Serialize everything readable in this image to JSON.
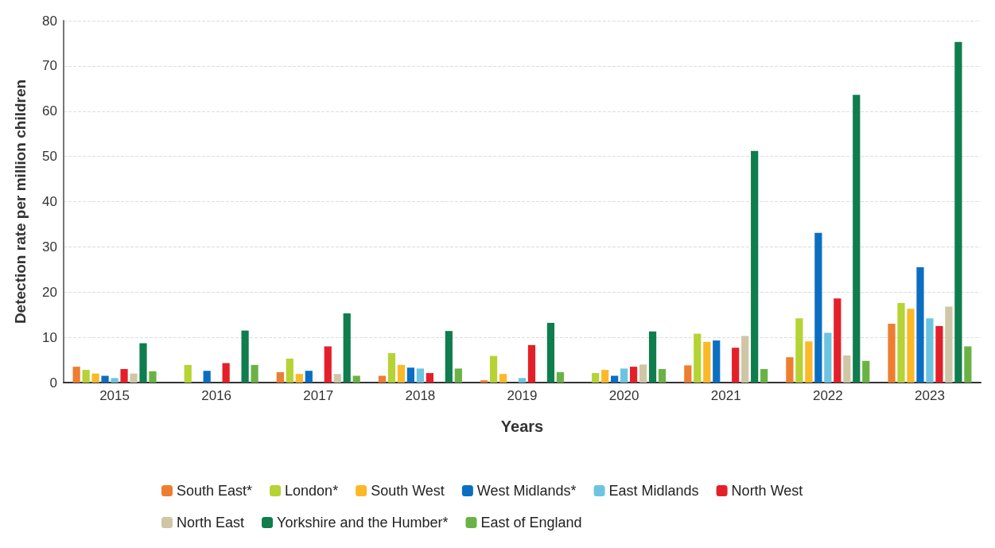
{
  "chart_data": {
    "type": "bar",
    "xlabel": "Years",
    "ylabel": "Detection rate per million children",
    "categories": [
      "2015",
      "2016",
      "2017",
      "2018",
      "2019",
      "2020",
      "2021",
      "2022",
      "2023"
    ],
    "series": [
      {
        "name": "South East*",
        "color": "#ed7d31",
        "values": [
          3.5,
          null,
          2.3,
          1.5,
          0.5,
          null,
          3.8,
          5.6,
          13
        ]
      },
      {
        "name": "London*",
        "color": "#b5d334",
        "values": [
          2.8,
          3.9,
          5.3,
          6.5,
          5.9,
          2.1,
          10.8,
          14.2,
          17.6
        ]
      },
      {
        "name": "South West",
        "color": "#fbb829",
        "values": [
          2,
          null,
          1.9,
          3.9,
          1.9,
          2.8,
          9,
          9.1,
          16.3
        ]
      },
      {
        "name": "West Midlands*",
        "color": "#0a6fc2",
        "values": [
          1.5,
          2.6,
          2.6,
          3.3,
          null,
          1.5,
          9.3,
          33.1,
          25.5
        ]
      },
      {
        "name": "East Midlands",
        "color": "#6cc5e0",
        "values": [
          1,
          null,
          null,
          3.1,
          1,
          3.1,
          null,
          11,
          14.2
        ]
      },
      {
        "name": "North West",
        "color": "#e3202a",
        "values": [
          3,
          4.3,
          8,
          2.1,
          8.3,
          3.5,
          7.7,
          18.6,
          12.5
        ]
      },
      {
        "name": "North East",
        "color": "#cfc6a5",
        "values": [
          2,
          null,
          1.9,
          null,
          null,
          4,
          10.3,
          6,
          16.8
        ]
      },
      {
        "name": "Yorkshire and the Humber*",
        "color": "#0f7d4d",
        "values": [
          8.7,
          11.5,
          15.3,
          11.4,
          13.2,
          11.3,
          51.2,
          63.6,
          75.3
        ]
      },
      {
        "name": "East of England",
        "color": "#6ab245",
        "values": [
          2.5,
          3.9,
          1.5,
          3.1,
          2.3,
          3,
          3,
          4.8,
          8
        ]
      }
    ],
    "ylim": [
      0,
      80
    ],
    "yticks": [
      0,
      10,
      20,
      30,
      40,
      50,
      60,
      70,
      80
    ],
    "grid": "y",
    "legend": "bottom"
  }
}
